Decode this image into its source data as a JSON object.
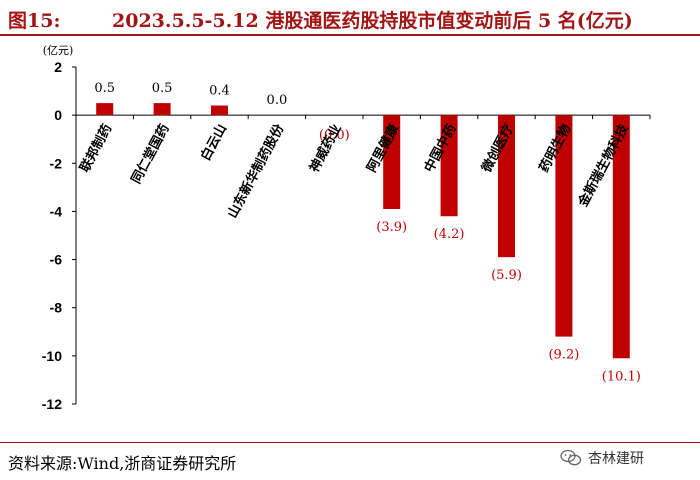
{
  "header": {
    "figure_label": "图15:",
    "title": "2023.5.5-5.12 港股通医药股持股市值变动前后 5 名(亿元)"
  },
  "source": "资料来源:Wind,浙商证券研究所",
  "watermark": "杏林建研",
  "colors": {
    "accent": "#a31515",
    "bar": "#c00000",
    "negative_label": "#c00000"
  },
  "chart_data": {
    "type": "bar",
    "title": "2023.5.5-5.12 港股通医药股持股市值变动前后 5 名(亿元)",
    "ylabel": "(亿元)",
    "xlabel": "",
    "ylim": [
      -12,
      2
    ],
    "yticks": [
      2,
      0,
      -2,
      -4,
      -6,
      -8,
      -10,
      -12
    ],
    "grid": false,
    "categories": [
      "联邦制药",
      "同仁堂国药",
      "白云山",
      "山东新华制药股份",
      "神威药业",
      "阿里健康",
      "中国中药",
      "微创医疗",
      "药明生物",
      "金斯瑞生物科技"
    ],
    "values": [
      0.5,
      0.5,
      0.4,
      0.0,
      0.0,
      -3.9,
      -4.2,
      -5.9,
      -9.2,
      -10.1
    ],
    "value_labels": [
      "0.5",
      "0.5",
      "0.4",
      "0.0",
      "(0.0)",
      "(3.9)",
      "(4.2)",
      "(5.9)",
      "(9.2)",
      "(10.1)"
    ]
  }
}
